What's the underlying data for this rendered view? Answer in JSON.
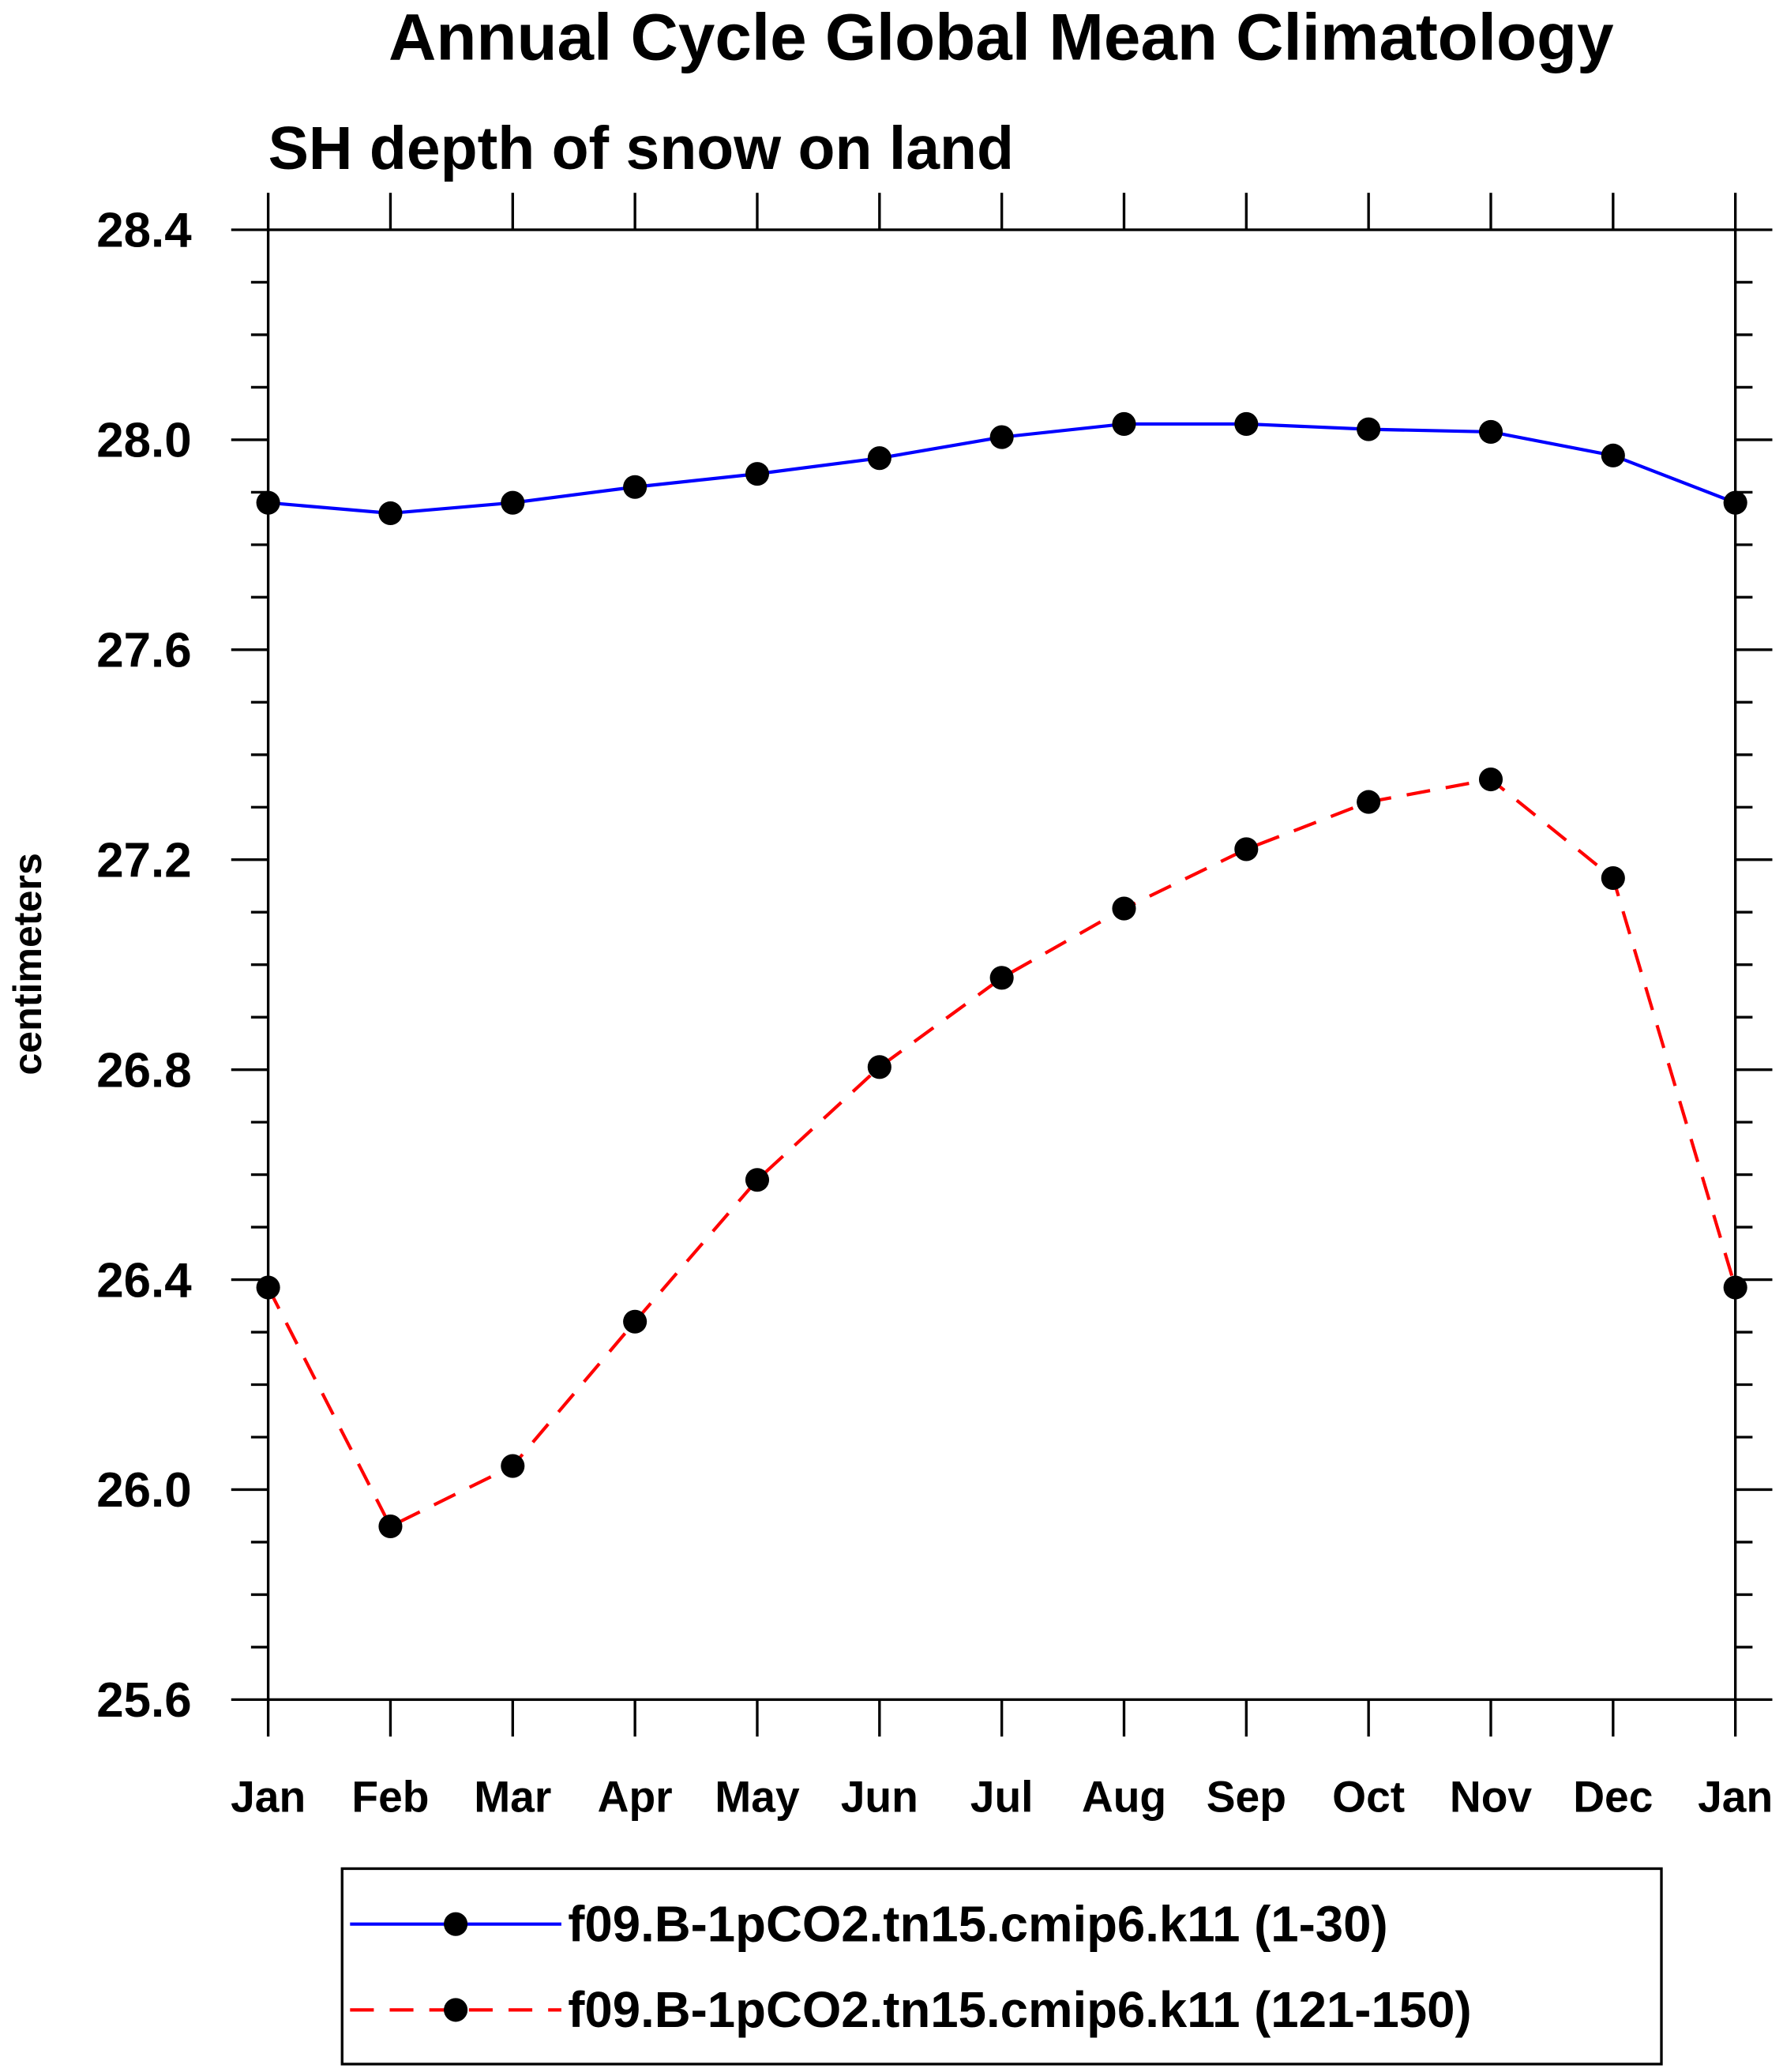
{
  "chart_data": {
    "type": "line",
    "title": "Annual Cycle Global Mean Climatology",
    "subtitle": "SH depth of snow on land",
    "xlabel": "",
    "ylabel": "centimeters",
    "categories": [
      "Jan",
      "Feb",
      "Mar",
      "Apr",
      "May",
      "Jun",
      "Jul",
      "Aug",
      "Sep",
      "Oct",
      "Nov",
      "Dec",
      "Jan"
    ],
    "ylim": [
      25.6,
      28.4
    ],
    "yticks": [
      "25.6",
      "26.0",
      "26.4",
      "26.8",
      "27.2",
      "27.6",
      "28.0",
      "28.4"
    ],
    "grid": false,
    "legend_position": "bottom",
    "series": [
      {
        "name": "f09.B-1pCO2.tn15.cmip6.k11 (1-30)",
        "color": "#0000ff",
        "dash": "solid",
        "values": [
          27.88,
          27.86,
          27.88,
          27.91,
          27.935,
          27.965,
          28.005,
          28.03,
          28.03,
          28.02,
          28.015,
          27.97,
          27.88
        ]
      },
      {
        "name": "f09.B-1pCO2.tn15.cmip6.k11 (121-150)",
        "color": "#ff0000",
        "dash": "dashed",
        "values": [
          26.385,
          25.93,
          26.045,
          26.32,
          26.59,
          26.805,
          26.975,
          27.107,
          27.22,
          27.31,
          27.353,
          27.165,
          26.385
        ]
      }
    ]
  }
}
